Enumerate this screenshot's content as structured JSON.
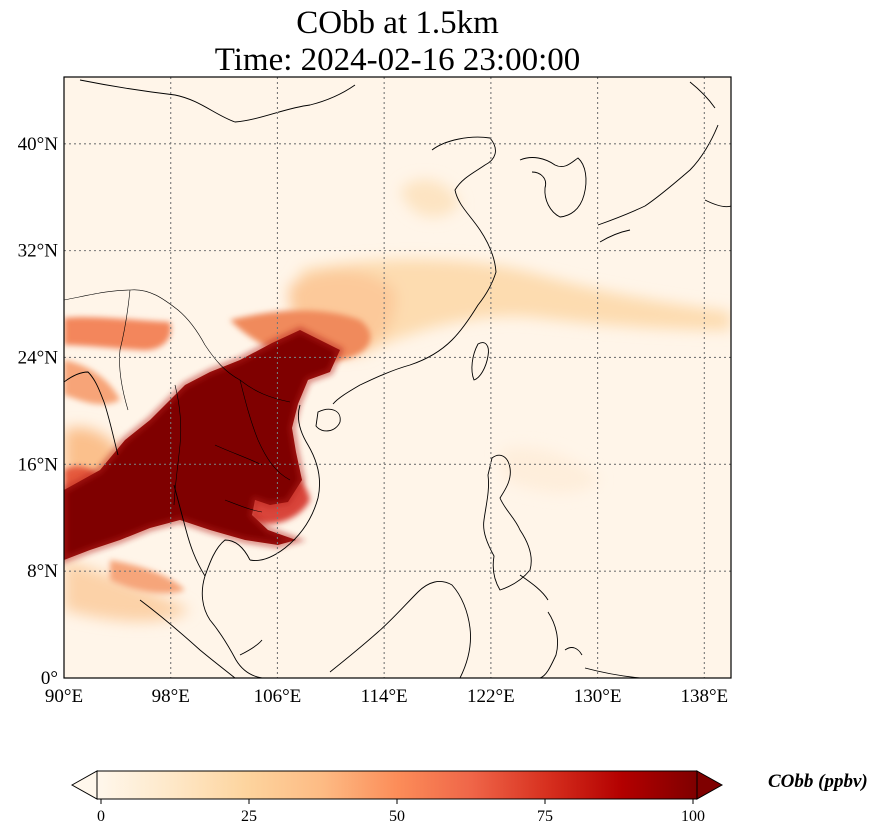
{
  "title": {
    "line1": "CObb at 1.5km",
    "line2": "Time: 2024-02-16 23:00:00"
  },
  "map": {
    "lon_range": [
      90,
      140
    ],
    "lat_range": [
      0,
      45
    ],
    "lon_ticks": [
      "90°E",
      "98°E",
      "106°E",
      "114°E",
      "122°E",
      "130°E",
      "138°E"
    ],
    "lat_ticks": [
      "0°",
      "8°N",
      "16°N",
      "24°N",
      "32°N",
      "40°N"
    ],
    "gridlines": true,
    "field": "CObb concentration (smoke plume over Indochina / southern China)"
  },
  "colorbar": {
    "label": "CObb (ppbv)",
    "ticks": [
      "0",
      "25",
      "50",
      "75",
      "100"
    ],
    "range": [
      0,
      100
    ],
    "extend": "both",
    "colormap": "OrRd",
    "colors": [
      "#fff7ec",
      "#fee8c8",
      "#fdd49e",
      "#fdbb84",
      "#fc8d59",
      "#ef6548",
      "#d7301f",
      "#b30000",
      "#7f0000"
    ]
  }
}
